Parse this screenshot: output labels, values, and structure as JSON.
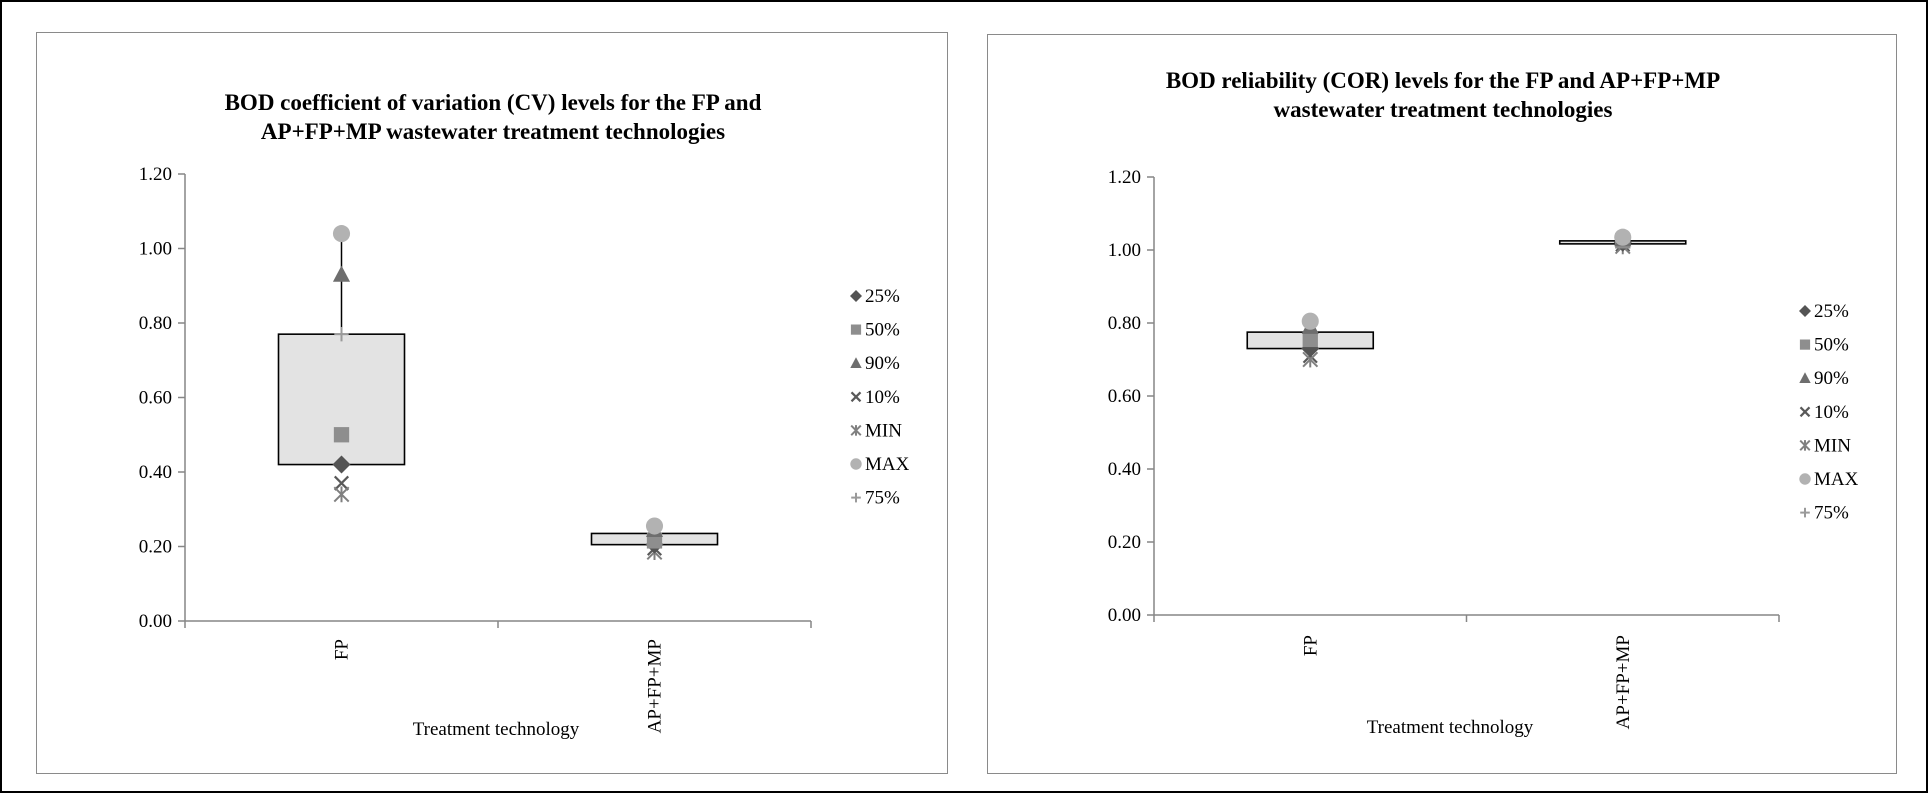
{
  "colors": {
    "box_fill": "#e3e3e3",
    "box_stroke": "#000000",
    "axis": "#868686",
    "p25": "#545454",
    "p50": "#8e8e8e",
    "p90": "#6e6e6e",
    "p10": "#595959",
    "min": "#808080",
    "max": "#b2b2b2",
    "p75": "#9a9a9a"
  },
  "chart_data": [
    {
      "type": "box",
      "title": [
        "BOD coefficient of variation (CV) levels for the FP and",
        "AP+FP+MP wastewater treatment technologies"
      ],
      "xlabel": "Treatment technology",
      "ylabel": "",
      "ylim": [
        0,
        1.2
      ],
      "yticks": [
        "0.00",
        "0.20",
        "0.40",
        "0.60",
        "0.80",
        "1.00",
        "1.20"
      ],
      "categories": [
        "FP",
        "AP+FP+MP"
      ],
      "legend_position": "right",
      "series": [
        {
          "name": "25%",
          "marker": "diamond",
          "values": [
            0.42,
            0.205
          ]
        },
        {
          "name": "50%",
          "marker": "square",
          "values": [
            0.5,
            0.215
          ]
        },
        {
          "name": "90%",
          "marker": "triangle",
          "values": [
            0.93,
            0.245
          ]
        },
        {
          "name": "10%",
          "marker": "x",
          "values": [
            0.37,
            0.195
          ]
        },
        {
          "name": "MIN",
          "marker": "star",
          "values": [
            0.34,
            0.185
          ]
        },
        {
          "name": "MAX",
          "marker": "circle",
          "values": [
            1.04,
            0.255
          ]
        },
        {
          "name": "75%",
          "marker": "plus",
          "values": [
            0.77,
            0.235
          ]
        }
      ],
      "boxes": [
        {
          "low": 0.42,
          "high": 0.77,
          "whisker_max": 1.04
        },
        {
          "low": 0.205,
          "high": 0.235,
          "whisker_max": 0.255
        }
      ]
    },
    {
      "type": "box",
      "title": [
        "BOD reliability (COR) levels for the FP and AP+FP+MP",
        "wastewater treatment technologies"
      ],
      "xlabel": "Treatment technology",
      "ylabel": "",
      "ylim": [
        0,
        1.2
      ],
      "yticks": [
        "0.00",
        "0.20",
        "0.40",
        "0.60",
        "0.80",
        "1.00",
        "1.20"
      ],
      "categories": [
        "FP",
        "AP+FP+MP"
      ],
      "legend_position": "right",
      "series": [
        {
          "name": "25%",
          "marker": "diamond",
          "values": [
            0.73,
            1.02
          ]
        },
        {
          "name": "50%",
          "marker": "square",
          "values": [
            0.755,
            1.025
          ]
        },
        {
          "name": "90%",
          "marker": "triangle",
          "values": [
            0.79,
            1.03
          ]
        },
        {
          "name": "10%",
          "marker": "x",
          "values": [
            0.71,
            1.015
          ]
        },
        {
          "name": "MIN",
          "marker": "star",
          "values": [
            0.7,
            1.01
          ]
        },
        {
          "name": "MAX",
          "marker": "circle",
          "values": [
            0.805,
            1.035
          ]
        },
        {
          "name": "75%",
          "marker": "plus",
          "values": [
            0.775,
            1.025
          ]
        }
      ],
      "boxes": [
        {
          "low": 0.73,
          "high": 0.775,
          "whisker_max": 0.805
        },
        {
          "low": 1.02,
          "high": 1.025,
          "whisker_max": 1.035
        }
      ]
    }
  ]
}
